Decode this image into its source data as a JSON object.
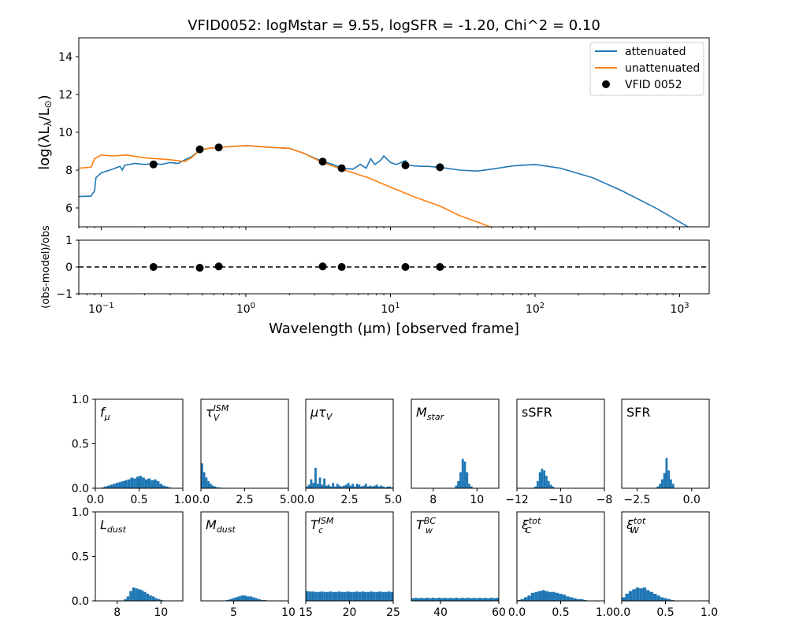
{
  "chart_data": [
    {
      "type": "line",
      "title": "VFID0052: logMstar = 9.55, logSFR = -1.20, Chi^2 = 0.10",
      "xlabel": "Wavelength (μm) [observed frame]",
      "ylabel": "log(λL",
      "ylabel_sub": "λ",
      "ylabel_end": "/L",
      "ylabel_sun": "⊙",
      "ylabel_close": ")",
      "xscale": "log",
      "xlim": [
        0.07,
        1600
      ],
      "ylim": [
        5,
        15
      ],
      "grid": false,
      "legend_position": "top-right",
      "y_ticks": [
        "6",
        "8",
        "10",
        "12",
        "14"
      ],
      "x_ticks": [
        {
          "value": 0.1,
          "base": "10",
          "exp": "−1"
        },
        {
          "value": 1,
          "base": "10",
          "exp": "0"
        },
        {
          "value": 10,
          "base": "10",
          "exp": "1"
        },
        {
          "value": 100,
          "base": "10",
          "exp": "2"
        },
        {
          "value": 1000,
          "base": "10",
          "exp": "3"
        }
      ],
      "series": [
        {
          "name": "attenuated",
          "color": "#1f77b4",
          "points": [
            [
              0.07,
              6.6
            ],
            [
              0.085,
              6.62
            ],
            [
              0.09,
              6.9
            ],
            [
              0.092,
              7.6
            ],
            [
              0.1,
              7.85
            ],
            [
              0.12,
              8.05
            ],
            [
              0.135,
              8.2
            ],
            [
              0.14,
              8.0
            ],
            [
              0.145,
              8.25
            ],
            [
              0.17,
              8.35
            ],
            [
              0.2,
              8.3
            ],
            [
              0.23,
              8.35
            ],
            [
              0.26,
              8.3
            ],
            [
              0.3,
              8.4
            ],
            [
              0.34,
              8.35
            ],
            [
              0.38,
              8.55
            ],
            [
              0.42,
              8.7
            ],
            [
              0.48,
              9.05
            ],
            [
              0.55,
              9.15
            ],
            [
              0.65,
              9.2
            ],
            [
              0.8,
              9.25
            ],
            [
              1.0,
              9.3
            ],
            [
              1.5,
              9.2
            ],
            [
              2.0,
              9.15
            ],
            [
              2.5,
              8.9
            ],
            [
              3.4,
              8.45
            ],
            [
              4.0,
              8.3
            ],
            [
              4.6,
              8.1
            ],
            [
              5.5,
              8.05
            ],
            [
              6.2,
              8.3
            ],
            [
              6.8,
              8.1
            ],
            [
              7.3,
              8.6
            ],
            [
              7.8,
              8.3
            ],
            [
              8.5,
              8.5
            ],
            [
              9.0,
              8.75
            ],
            [
              10,
              8.4
            ],
            [
              11,
              8.3
            ],
            [
              12.7,
              8.5
            ],
            [
              13.5,
              8.25
            ],
            [
              16,
              8.2
            ],
            [
              18,
              8.2
            ],
            [
              22,
              8.15
            ],
            [
              30,
              8.0
            ],
            [
              40,
              7.95
            ],
            [
              50,
              8.05
            ],
            [
              70,
              8.22
            ],
            [
              100,
              8.3
            ],
            [
              150,
              8.1
            ],
            [
              250,
              7.6
            ],
            [
              400,
              6.9
            ],
            [
              700,
              5.95
            ],
            [
              1200,
              4.9
            ],
            [
              1400,
              4.6
            ]
          ]
        },
        {
          "name": "unattenuated",
          "color": "#ff7f0e",
          "points": [
            [
              0.07,
              8.1
            ],
            [
              0.085,
              8.15
            ],
            [
              0.09,
              8.6
            ],
            [
              0.1,
              8.8
            ],
            [
              0.12,
              8.75
            ],
            [
              0.15,
              8.8
            ],
            [
              0.2,
              8.65
            ],
            [
              0.3,
              8.55
            ],
            [
              0.38,
              8.45
            ],
            [
              0.42,
              8.65
            ],
            [
              0.48,
              9.05
            ],
            [
              0.55,
              9.15
            ],
            [
              0.65,
              9.2
            ],
            [
              0.8,
              9.25
            ],
            [
              1.0,
              9.3
            ],
            [
              1.5,
              9.2
            ],
            [
              2.0,
              9.15
            ],
            [
              2.5,
              8.9
            ],
            [
              3.4,
              8.4
            ],
            [
              4.6,
              8.05
            ],
            [
              7,
              7.6
            ],
            [
              10,
              7.1
            ],
            [
              15,
              6.55
            ],
            [
              22,
              6.1
            ],
            [
              30,
              5.6
            ],
            [
              40,
              5.25
            ],
            [
              55,
              4.85
            ],
            [
              60,
              4.7
            ]
          ]
        },
        {
          "name": "VFID 0052",
          "color": "#000000",
          "marker": "circle",
          "points": [
            [
              0.23,
              8.3
            ],
            [
              0.48,
              9.1
            ],
            [
              0.65,
              9.2
            ],
            [
              3.4,
              8.45
            ],
            [
              4.6,
              8.1
            ],
            [
              12.7,
              8.25
            ],
            [
              22,
              8.15
            ]
          ]
        }
      ]
    },
    {
      "type": "scatter",
      "ylabel": "(obs-model)/obs",
      "xscale": "log",
      "xlim": [
        0.07,
        1600
      ],
      "ylim": [
        -1,
        1
      ],
      "y_ticks": [
        "−1",
        "0",
        "1"
      ],
      "reference_line": {
        "y": 0,
        "style": "dashed",
        "color": "#000000"
      },
      "points": [
        [
          0.23,
          0.0
        ],
        [
          0.48,
          -0.03
        ],
        [
          0.65,
          0.02
        ],
        [
          3.4,
          0.02
        ],
        [
          4.6,
          0.0
        ],
        [
          12.7,
          0.0
        ],
        [
          22,
          0.0
        ]
      ]
    },
    {
      "type": "bar",
      "panel": "histograms",
      "ylim": [
        0,
        1
      ],
      "y_ticks": [
        "0.0",
        "0.5",
        "1.0"
      ],
      "bar_color": "#1f77b4",
      "panels": [
        {
          "label": "f",
          "sub": "μ",
          "xlim": [
            0,
            1
          ],
          "x_ticks": [
            {
              "v": 0,
              "t": "0.0"
            },
            {
              "v": 0.5,
              "t": "0.5"
            },
            {
              "v": 1,
              "t": "1.0"
            }
          ],
          "bins": [
            0,
            1
          ],
          "values": [
            0,
            0,
            0.01,
            0.02,
            0.03,
            0.04,
            0.05,
            0.06,
            0.07,
            0.08,
            0.09,
            0.1,
            0.12,
            0.11,
            0.13,
            0.14,
            0.12,
            0.1,
            0.11,
            0.09,
            0.1,
            0.08,
            0.05,
            0.03,
            0.02,
            0.01,
            0,
            0,
            0,
            0
          ]
        },
        {
          "label": "τ",
          "sub": "V",
          "sup": "ISM",
          "xlim": [
            0,
            5
          ],
          "x_ticks": [
            {
              "v": 0,
              "t": "0.0"
            },
            {
              "v": 2.5,
              "t": "2.5"
            },
            {
              "v": 5,
              "t": "5.0"
            }
          ],
          "bins": [
            0,
            5
          ],
          "values": [
            0.28,
            0.18,
            0.12,
            0.08,
            0.05,
            0.03,
            0.02,
            0.01,
            0.01,
            0,
            0,
            0,
            0,
            0,
            0,
            0,
            0,
            0,
            0,
            0,
            0,
            0,
            0,
            0,
            0,
            0,
            0,
            0,
            0,
            0,
            0,
            0,
            0,
            0,
            0,
            0,
            0,
            0,
            0,
            0
          ]
        },
        {
          "label": "μτ",
          "sub": "V",
          "xlim": [
            0,
            5
          ],
          "x_ticks": [
            {
              "v": 0,
              "t": "0.0"
            },
            {
              "v": 2.5,
              "t": "2.5"
            },
            {
              "v": 5,
              "t": "5.0"
            }
          ],
          "bins": [
            0,
            5
          ],
          "values": [
            0.02,
            0.04,
            0.1,
            0.06,
            0.23,
            0.05,
            0.12,
            0.04,
            0.11,
            0.03,
            0.04,
            0.02,
            0.06,
            0.02,
            0.05,
            0.03,
            0.02,
            0.03,
            0.04,
            0.06,
            0.03,
            0.05,
            0.02,
            0.05,
            0.04,
            0.02,
            0.03,
            0.05,
            0.02,
            0.03,
            0.02,
            0.03,
            0.04,
            0.02,
            0.03,
            0.02,
            0.01,
            0.02,
            0.02,
            0.01
          ]
        },
        {
          "label": "M",
          "sub": "star",
          "xlim": [
            7,
            11
          ],
          "x_ticks": [
            {
              "v": 8,
              "t": "8"
            },
            {
              "v": 10,
              "t": "10"
            }
          ],
          "bins": [
            9.0,
            9.8
          ],
          "values": [
            0.03,
            0.08,
            0.18,
            0.33,
            0.3,
            0.18,
            0.05,
            0.02
          ]
        },
        {
          "label": "sSFR",
          "xlim": [
            -12,
            -8
          ],
          "x_ticks": [
            {
              "v": -12,
              "t": "−12"
            },
            {
              "v": -10,
              "t": "−10"
            },
            {
              "v": -8,
              "t": "−8"
            }
          ],
          "bins": [
            -11.2,
            -10.3
          ],
          "values": [
            0.02,
            0.08,
            0.18,
            0.22,
            0.2,
            0.14,
            0.08,
            0.04,
            0.02
          ]
        },
        {
          "label": "SFR",
          "xlim": [
            -3.2,
            0.8
          ],
          "x_ticks": [
            {
              "v": -2.5,
              "t": "−2.5"
            },
            {
              "v": 0,
              "t": "0.0"
            }
          ],
          "bins": [
            -1.6,
            -0.8
          ],
          "values": [
            0.02,
            0.05,
            0.1,
            0.17,
            0.34,
            0.2,
            0.1,
            0.05
          ]
        },
        {
          "label": "L",
          "sub": "dust",
          "xlim": [
            7,
            11
          ],
          "x_ticks": [
            {
              "v": 8,
              "t": "8"
            },
            {
              "v": 10,
              "t": "10"
            }
          ],
          "bins": [
            8.3,
            10.1
          ],
          "values": [
            0.02,
            0.05,
            0.11,
            0.15,
            0.14,
            0.13,
            0.12,
            0.1,
            0.08,
            0.06,
            0.05,
            0.03,
            0.02,
            0.01
          ]
        },
        {
          "label": "M",
          "sub": "dust",
          "xlim": [
            2,
            10
          ],
          "x_ticks": [
            {
              "v": 5,
              "t": "5"
            },
            {
              "v": 10,
              "t": "10"
            }
          ],
          "bins": [
            4.3,
            8.0
          ],
          "values": [
            0.01,
            0.02,
            0.03,
            0.04,
            0.05,
            0.06,
            0.06,
            0.05,
            0.05,
            0.04,
            0.03,
            0.02,
            0.01,
            0.01
          ]
        },
        {
          "label": "T",
          "sub": "c",
          "sup": "ISM",
          "xlim": [
            15,
            25
          ],
          "x_ticks": [
            {
              "v": 15,
              "t": "15"
            },
            {
              "v": 20,
              "t": "20"
            },
            {
              "v": 25,
              "t": "25"
            }
          ],
          "bins": [
            15,
            25
          ],
          "values": [
            0.11,
            0.105,
            0.105,
            0.1,
            0.1,
            0.105,
            0.1,
            0.1,
            0.105,
            0.1,
            0.1,
            0.105,
            0.1,
            0.1,
            0.105,
            0.1,
            0.1,
            0.105,
            0.1,
            0.105,
            0.1,
            0.1,
            0.105,
            0.1,
            0.1,
            0.105,
            0.1,
            0.1,
            0.105,
            0.1
          ]
        },
        {
          "label": "T",
          "sub": "w",
          "sup": "BC",
          "xlim": [
            30,
            60
          ],
          "x_ticks": [
            {
              "v": 40,
              "t": "40"
            },
            {
              "v": 60,
              "t": "60"
            }
          ],
          "bins": [
            30,
            60
          ],
          "values": [
            0.03,
            0.035,
            0.03,
            0.035,
            0.03,
            0.035,
            0.03,
            0.035,
            0.03,
            0.035,
            0.03,
            0.035,
            0.03,
            0.035,
            0.03,
            0.035,
            0.03,
            0.035,
            0.03,
            0.035,
            0.03,
            0.035,
            0.03,
            0.035,
            0.03,
            0.035,
            0.03,
            0.035,
            0.03,
            0.035
          ]
        },
        {
          "label": "ξ",
          "sub": "C",
          "sup": "tot",
          "xlim": [
            0,
            1
          ],
          "x_ticks": [
            {
              "v": 0,
              "t": "0.0"
            },
            {
              "v": 0.5,
              "t": "0.5"
            },
            {
              "v": 1,
              "t": "1.0"
            }
          ],
          "bins": [
            0,
            0.8
          ],
          "values": [
            0.01,
            0.02,
            0.04,
            0.06,
            0.09,
            0.1,
            0.11,
            0.12,
            0.11,
            0.1,
            0.1,
            0.09,
            0.08,
            0.07,
            0.05,
            0.04,
            0.03,
            0.02,
            0.02,
            0.01
          ]
        },
        {
          "label": "ξ",
          "sub": "W",
          "sup": "tot",
          "xlim": [
            0,
            1
          ],
          "x_ticks": [
            {
              "v": 0,
              "t": "0.0"
            },
            {
              "v": 0.5,
              "t": "0.5"
            },
            {
              "v": 1,
              "t": "1.0"
            }
          ],
          "bins": [
            0,
            0.6
          ],
          "values": [
            0.04,
            0.08,
            0.11,
            0.13,
            0.15,
            0.14,
            0.15,
            0.12,
            0.1,
            0.08,
            0.06,
            0.04,
            0.03,
            0.02,
            0.01
          ]
        }
      ]
    }
  ]
}
